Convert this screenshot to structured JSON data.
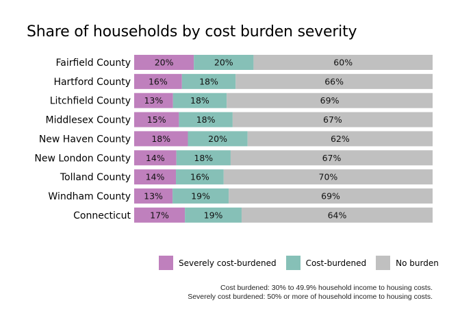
{
  "chart_data": {
    "type": "bar",
    "orientation": "horizontal-stacked",
    "title": "Share of households by cost burden severity",
    "categories": [
      "Fairfield County",
      "Hartford County",
      "Litchfield County",
      "Middlesex County",
      "New Haven County",
      "New London County",
      "Tolland County",
      "Windham County",
      "Connecticut"
    ],
    "series": [
      {
        "name": "Severely cost-burdened",
        "color": "#bf80bd",
        "values": [
          20,
          16,
          13,
          15,
          18,
          14,
          14,
          13,
          17
        ]
      },
      {
        "name": "Cost-burdened",
        "color": "#86c0b7",
        "values": [
          20,
          18,
          18,
          18,
          20,
          18,
          16,
          19,
          19
        ]
      },
      {
        "name": "No burden",
        "color": "#c0c0c0",
        "values": [
          60,
          66,
          69,
          67,
          62,
          67,
          70,
          69,
          64
        ]
      }
    ],
    "value_suffix": "%",
    "legend_position": "bottom",
    "captions": [
      "Cost burdened: 30% to 49.9% household income to housing costs.",
      "Severely cost burdened: 50% or more of household income to housing costs."
    ]
  }
}
